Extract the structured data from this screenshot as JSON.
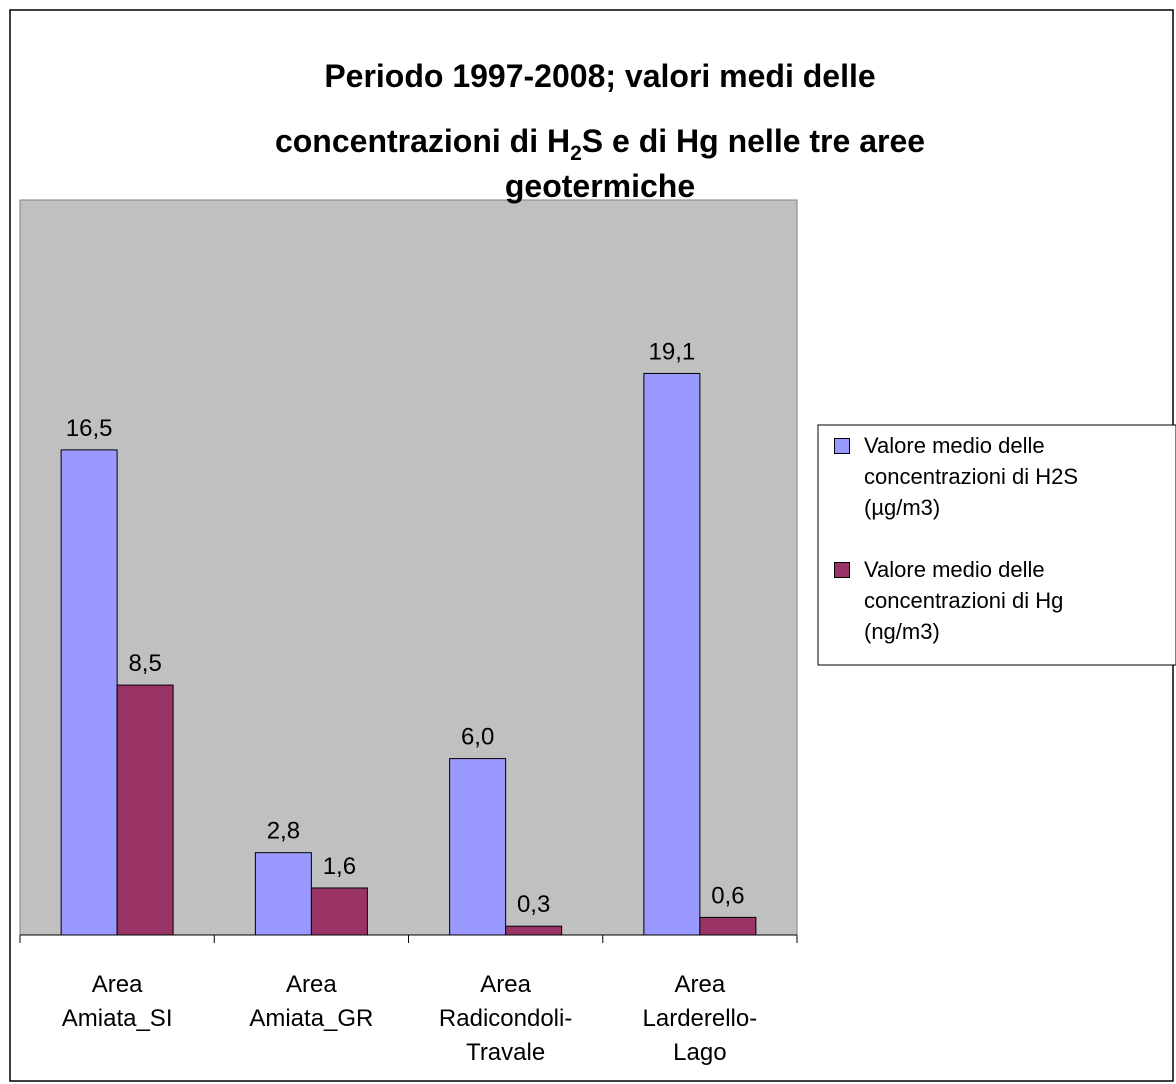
{
  "chart_data": {
    "type": "bar",
    "title": [
      "Periodo 1997-2008; valori medi delle",
      [
        "concentrazioni di H",
        "2",
        "S e di Hg nelle tre aree"
      ],
      "geotermiche"
    ],
    "categories": [
      "Area Amiata_SI",
      "Area Amiata_GR",
      "Area Radicondoli-Travale",
      "Area Larderello-Lago"
    ],
    "series": [
      {
        "name": "Valore medio delle concentrazioni di H2S (µg/m3)",
        "color": "#9999ff",
        "values": [
          16.5,
          2.8,
          6.0,
          19.1
        ],
        "value_labels": [
          "16,5",
          "2,8",
          "6,0",
          "19,1"
        ]
      },
      {
        "name": "Valore medio delle concentrazioni di Hg (ng/m3)",
        "color": "#993366",
        "values": [
          8.5,
          1.6,
          0.3,
          0.6
        ],
        "value_labels": [
          "8,5",
          "1,6",
          "0,3",
          "0,6"
        ]
      }
    ],
    "ylim": [
      0,
      25
    ],
    "legend": "right"
  }
}
